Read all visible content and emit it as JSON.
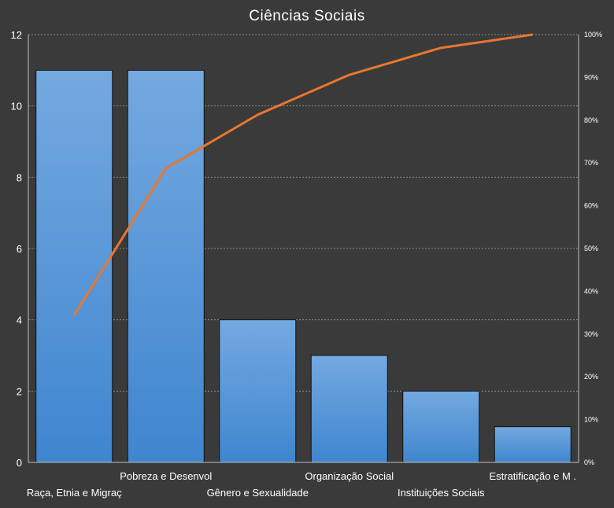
{
  "chart_data": {
    "type": "bar",
    "title": "Ciências Sociais",
    "categories": [
      "Raça, Etnia e Migraç",
      "Pobreza e Desenvol",
      "Gênero e Sexualidade",
      "Organização Social",
      "Instituições Sociais",
      "Estratificação e M ."
    ],
    "series": [
      {
        "type": "bar",
        "values": [
          11,
          11,
          4,
          3,
          2,
          1
        ]
      },
      {
        "type": "line",
        "axis": "secondary",
        "values": [
          34.4,
          68.75,
          81.25,
          90.6,
          96.9,
          100
        ]
      }
    ],
    "ylim": [
      0,
      12
    ],
    "yticks": [
      0,
      2,
      4,
      6,
      8,
      10,
      12
    ],
    "y2lim": [
      0,
      100
    ],
    "y2ticks": [
      "0%",
      "10%",
      "20%",
      "30%",
      "40%",
      "50%",
      "60%",
      "70%",
      "80%",
      "90%",
      "100%"
    ],
    "grid": true,
    "colors": {
      "background": "#3a3a3a",
      "bar_top": "#74a9e0",
      "bar_bottom": "#3f86cf",
      "line": "#e8772e",
      "text": "#ffffff",
      "grid": "#8a8a8a"
    }
  }
}
